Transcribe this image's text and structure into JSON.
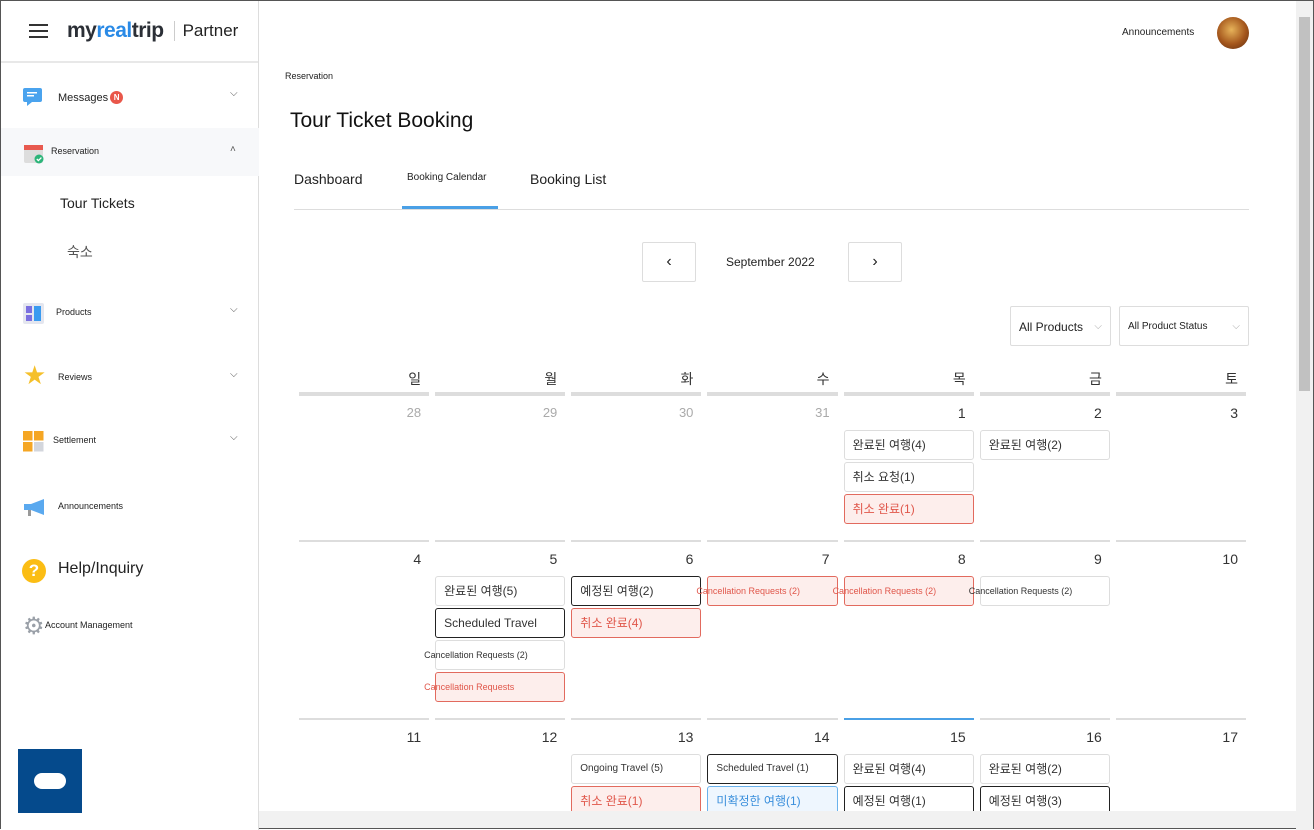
{
  "sidebar": {
    "logo": "myrealtrip",
    "logo_main": "my",
    "logo_accent": "real",
    "logo_end": "trip",
    "partner": "Partner",
    "items": [
      {
        "label": "Messages",
        "badge": "N",
        "icon": "chat-bubble-icon"
      },
      {
        "label": "Reservation",
        "icon": "calendar-check-icon"
      },
      {
        "label": "Products",
        "icon": "grid-icon"
      },
      {
        "label": "Reviews",
        "icon": "star-icon"
      },
      {
        "label": "Settlement",
        "icon": "calculator-icon"
      },
      {
        "label": "Announcements",
        "icon": "megaphone-icon"
      },
      {
        "label": "Help/Inquiry",
        "icon": "question-icon"
      },
      {
        "label": "Account Management",
        "icon": "gear-icon"
      }
    ],
    "sub_items": [
      "Tour Tickets",
      "숙소"
    ]
  },
  "header": {
    "announcements": "Announcements"
  },
  "breadcrumb": "Reservation",
  "title": "Tour Ticket Booking",
  "tabs": [
    "Dashboard",
    "Booking Calendar",
    "Booking List"
  ],
  "calendar": {
    "month": "September 2022",
    "prev": "‹",
    "next": "›",
    "filters": [
      "All Products",
      "All Product Status"
    ],
    "weekdays": [
      "일",
      "월",
      "화",
      "수",
      "목",
      "금",
      "토"
    ],
    "weeks": [
      [
        {
          "d": "28"
        },
        {
          "d": "29"
        },
        {
          "d": "30"
        },
        {
          "d": "31"
        },
        {
          "d": "1",
          "cur": true,
          "ev": [
            {
              "t": "완료된 여행(4)",
              "s": ""
            },
            {
              "t": "취소 요청(1)",
              "s": ""
            },
            {
              "t": "취소 완료(1)",
              "s": "red"
            }
          ]
        },
        {
          "d": "2",
          "cur": true,
          "ev": [
            {
              "t": "완료된 여행(2)",
              "s": ""
            }
          ]
        },
        {
          "d": "3",
          "cur": true
        }
      ],
      [
        {
          "d": "4",
          "cur": true
        },
        {
          "d": "5",
          "cur": true,
          "ev": [
            {
              "t": "완료된 여행(5)",
              "s": ""
            },
            {
              "t": "Scheduled Travel",
              "s": "dark"
            },
            {
              "t": "Cancellation Requests (2)",
              "s": "sm"
            },
            {
              "t": "Cancellation Requests",
              "s": "red sm"
            }
          ]
        },
        {
          "d": "6",
          "cur": true,
          "ev": [
            {
              "t": "예정된 여행(2)",
              "s": "dark"
            },
            {
              "t": "취소 완료(4)",
              "s": "red"
            }
          ]
        },
        {
          "d": "7",
          "cur": true,
          "ev": [
            {
              "t": "Cancellation Requests (2)",
              "s": "red sm"
            }
          ]
        },
        {
          "d": "8",
          "cur": true,
          "ev": [
            {
              "t": "Cancellation Requests (2)",
              "s": "red sm"
            }
          ]
        },
        {
          "d": "9",
          "cur": true,
          "ev": [
            {
              "t": "Cancellation Requests (2)",
              "s": "sm"
            }
          ]
        },
        {
          "d": "10",
          "cur": true
        }
      ],
      [
        {
          "d": "11",
          "cur": true
        },
        {
          "d": "12",
          "cur": true
        },
        {
          "d": "13",
          "cur": true,
          "ev": [
            {
              "t": "Ongoing Travel (5)",
              "s": "sm2"
            },
            {
              "t": "취소 완료(1)",
              "s": "red"
            }
          ]
        },
        {
          "d": "14",
          "cur": true,
          "ev": [
            {
              "t": "Scheduled Travel (1)",
              "s": "dark sm2"
            },
            {
              "t": "미확정한 여행(1)",
              "s": "blue"
            }
          ]
        },
        {
          "d": "15",
          "cur": true,
          "today": true,
          "ev": [
            {
              "t": "완료된 여행(4)",
              "s": ""
            },
            {
              "t": "예정된 여행(1)",
              "s": "dark"
            }
          ]
        },
        {
          "d": "16",
          "cur": true,
          "ev": [
            {
              "t": "완료된 여행(2)",
              "s": ""
            },
            {
              "t": "예정된 여행(3)",
              "s": "dark"
            }
          ]
        },
        {
          "d": "17",
          "cur": true
        }
      ]
    ]
  },
  "colors": {
    "accent": "#4aa0e6",
    "red": "#e0564a",
    "chat_button": "#054a8c"
  }
}
